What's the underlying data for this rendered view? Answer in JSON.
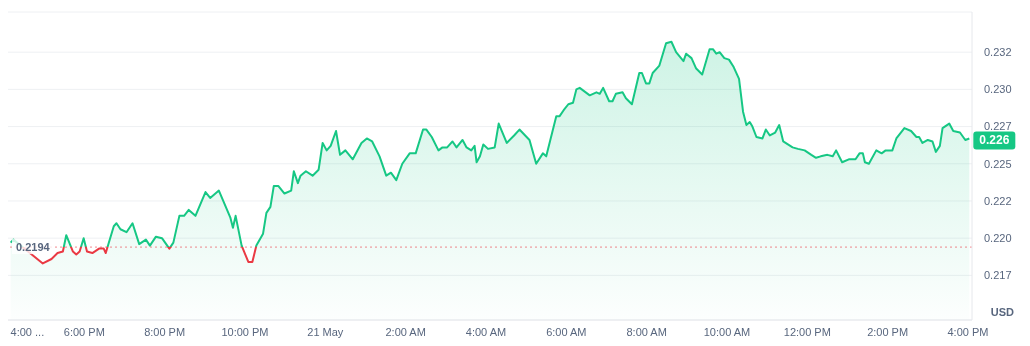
{
  "chart_data": {
    "type": "area",
    "ylabel": "USD",
    "x": [
      "--05-20T16:10",
      "--05-20T16:14",
      "--05-20T16:58",
      "--05-20T17:11",
      "--05-20T17:20",
      "--05-20T17:28",
      "--05-20T17:33",
      "--05-20T17:43",
      "--05-20T17:48",
      "--05-20T17:53",
      "--05-20T17:59",
      "--05-20T18:04",
      "--05-20T18:12",
      "--05-20T18:22",
      "--05-20T18:29",
      "--05-20T18:32",
      "--05-20T18:44",
      "--05-20T18:48",
      "--05-20T18:54",
      "--05-20T19:03",
      "--05-20T19:12",
      "--05-20T19:22",
      "--05-20T19:32",
      "--05-20T19:38",
      "--05-20T19:47",
      "--05-20T19:56",
      "--05-20T20:07",
      "--05-20T20:13",
      "--05-20T20:22",
      "--05-20T20:29",
      "--05-20T20:36",
      "--05-20T20:46",
      "--05-20T21:01",
      "--05-20T21:08",
      "--05-20T21:21",
      "--05-20T21:38",
      "--05-20T21:42",
      "--05-20T21:46",
      "--05-20T21:55",
      "--05-20T22:05",
      "--05-20T22:11",
      "--05-20T22:17",
      "--05-20T22:27",
      "--05-20T22:32",
      "--05-20T22:38",
      "--05-20T22:43",
      "--05-20T22:50",
      "--05-20T22:59",
      "--05-20T23:09",
      "--05-20T23:13",
      "--05-20T23:19",
      "--05-20T23:23",
      "--05-20T23:31",
      "--05-20T23:41",
      "--05-20T23:50",
      "--05-20T23:56",
      "--05-21T00:02",
      "--05-21T00:08",
      "--05-21T00:16",
      "--05-21T00:22",
      "--05-21T00:30",
      "--05-21T00:41",
      "--05-21T00:54",
      "--05-21T01:02",
      "--05-21T01:10",
      "--05-21T01:21",
      "--05-21T01:31",
      "--05-21T01:38",
      "--05-21T01:46",
      "--05-21T01:55",
      "--05-21T02:06",
      "--05-21T02:15",
      "--05-21T02:26",
      "--05-21T02:31",
      "--05-21T02:39",
      "--05-21T02:49",
      "--05-21T02:55",
      "--05-21T03:02",
      "--05-21T03:10",
      "--05-21T03:16",
      "--05-21T03:25",
      "--05-21T03:31",
      "--05-21T03:38",
      "--05-21T03:43",
      "--05-21T03:46",
      "--05-21T03:51",
      "--05-21T03:56",
      "--05-21T04:03",
      "--05-21T04:13",
      "--05-21T04:19",
      "--05-21T04:31",
      "--05-21T04:42",
      "--05-21T04:50",
      "--05-21T05:05",
      "--05-21T05:15",
      "--05-21T05:25",
      "--05-21T05:30",
      "--05-21T05:45",
      "--05-21T05:50",
      "--05-21T05:56",
      "--05-21T06:03",
      "--05-21T06:10",
      "--05-21T06:15",
      "--05-21T06:20",
      "--05-21T06:35",
      "--05-21T06:45",
      "--05-21T06:50",
      "--05-21T06:55",
      "--05-21T07:04",
      "--05-21T07:09",
      "--05-21T07:14",
      "--05-21T07:24",
      "--05-21T07:29",
      "--05-21T07:38",
      "--05-21T07:49",
      "--05-21T07:53",
      "--05-21T07:59",
      "--05-21T08:04",
      "--05-21T08:09",
      "--05-21T08:19",
      "--05-21T08:29",
      "--05-21T08:37",
      "--05-21T08:44",
      "--05-21T08:55",
      "--05-21T08:59",
      "--05-21T09:07",
      "--05-21T09:14",
      "--05-21T09:23",
      "--05-21T09:34",
      "--05-21T09:39",
      "--05-21T09:44",
      "--05-21T09:49",
      "--05-21T09:56",
      "--05-21T10:03",
      "--05-21T10:10",
      "--05-21T10:18",
      "--05-21T10:24",
      "--05-21T10:29",
      "--05-21T10:34",
      "--05-21T10:38",
      "--05-21T10:44",
      "--05-21T10:53",
      "--05-21T10:58",
      "--05-21T11:04",
      "--05-21T11:12",
      "--05-21T11:18",
      "--05-21T11:24",
      "--05-21T11:31",
      "--05-21T11:38",
      "--05-21T11:46",
      "--05-21T11:56",
      "--05-21T12:06",
      "--05-21T12:13",
      "--05-21T12:20",
      "--05-21T12:30",
      "--05-21T12:38",
      "--05-21T12:43",
      "--05-21T12:52",
      "--05-21T13:02",
      "--05-21T13:12",
      "--05-21T13:18",
      "--05-21T13:23",
      "--05-21T13:26",
      "--05-21T13:32",
      "--05-21T13:43",
      "--05-21T13:51",
      "--05-21T13:57",
      "--05-21T14:07",
      "--05-21T14:13",
      "--05-21T14:25",
      "--05-21T14:35",
      "--05-21T14:43",
      "--05-21T14:47",
      "--05-21T14:52",
      "--05-21T15:00",
      "--05-21T15:07",
      "--05-21T15:12",
      "--05-21T15:18",
      "--05-21T15:22",
      "--05-21T15:32",
      "--05-21T15:38",
      "--05-21T15:48",
      "--05-21T15:56",
      "--05-21T16:02"
    ],
    "series": [
      {
        "color": "#16c784",
        "values": [
          0.2197,
          0.2199,
          0.2183,
          0.2186,
          0.219,
          0.2191,
          0.2202,
          0.2191,
          0.2189,
          0.2191,
          0.22,
          0.2191,
          0.219,
          0.2193,
          0.2193,
          0.219,
          0.2208,
          0.221,
          0.2206,
          0.2204,
          0.221,
          0.2196,
          0.2199,
          0.2195,
          0.2201,
          0.22,
          0.2193,
          0.2197,
          0.2215,
          0.2215,
          0.2219,
          0.2215,
          0.2231,
          0.2227,
          0.2232,
          0.2214,
          0.2207,
          0.2215,
          0.2195,
          0.2184,
          0.2184,
          0.2195,
          0.2203,
          0.2217,
          0.2221,
          0.2235,
          0.2235,
          0.223,
          0.2232,
          0.2245,
          0.2237,
          0.2242,
          0.2245,
          0.2242,
          0.2246,
          0.2264,
          0.2259,
          0.2262,
          0.2272,
          0.2256,
          0.2259,
          0.2253,
          0.2264,
          0.2267,
          0.2265,
          0.2255,
          0.2242,
          0.2244,
          0.2239,
          0.225,
          0.2257,
          0.2257,
          0.2273,
          0.2273,
          0.2268,
          0.2259,
          0.2261,
          0.2261,
          0.2265,
          0.2261,
          0.2266,
          0.2261,
          0.2259,
          0.2262,
          0.2251,
          0.2255,
          0.2263,
          0.226,
          0.2261,
          0.2277,
          0.2264,
          0.2269,
          0.2273,
          0.2266,
          0.225,
          0.2257,
          0.2255,
          0.2282,
          0.2282,
          0.2286,
          0.229,
          0.2291,
          0.23,
          0.2301,
          0.2296,
          0.2298,
          0.2297,
          0.2301,
          0.2292,
          0.2292,
          0.2297,
          0.2298,
          0.2294,
          0.229,
          0.2311,
          0.2311,
          0.2304,
          0.2304,
          0.2311,
          0.2316,
          0.2331,
          0.2332,
          0.2325,
          0.2319,
          0.2324,
          0.2321,
          0.2314,
          0.231,
          0.2327,
          0.2327,
          0.2324,
          0.2325,
          0.2321,
          0.232,
          0.2315,
          0.2307,
          0.2285,
          0.2276,
          0.2278,
          0.2275,
          0.2268,
          0.2267,
          0.2273,
          0.2269,
          0.2271,
          0.2276,
          0.2265,
          0.2263,
          0.2261,
          0.226,
          0.2259,
          0.2256,
          0.2254,
          0.2255,
          0.2256,
          0.2255,
          0.2259,
          0.2251,
          0.2253,
          0.2253,
          0.2257,
          0.2257,
          0.2251,
          0.225,
          0.2259,
          0.2257,
          0.2259,
          0.2259,
          0.2267,
          0.2274,
          0.2272,
          0.2268,
          0.2268,
          0.2264,
          0.2266,
          0.2265,
          0.2258,
          0.2262,
          0.2274,
          0.2277,
          0.2272,
          0.2271,
          0.2266,
          0.2267
        ]
      }
    ],
    "xlim": [
      "--05-20T16:06",
      "--05-21T16:06"
    ],
    "xticks": [
      {
        "value": "--05-20T16:35",
        "label": "4:00 ..."
      },
      {
        "value": "--05-20T18:00",
        "label": "6:00 PM"
      },
      {
        "value": "--05-20T20:00",
        "label": "8:00 PM"
      },
      {
        "value": "--05-20T22:00",
        "label": "10:00 PM"
      },
      {
        "value": "--05-21T00:00",
        "label": "21 May"
      },
      {
        "value": "--05-21T02:00",
        "label": "2:00 AM"
      },
      {
        "value": "--05-21T04:00",
        "label": "4:00 AM"
      },
      {
        "value": "--05-21T06:00",
        "label": "6:00 AM"
      },
      {
        "value": "--05-21T08:00",
        "label": "8:00 AM"
      },
      {
        "value": "--05-21T10:00",
        "label": "10:00 AM"
      },
      {
        "value": "--05-21T12:00",
        "label": "12:00 PM"
      },
      {
        "value": "--05-21T14:00",
        "label": "2:00 PM"
      },
      {
        "value": "--05-21T16:00",
        "label": "4:00 PM"
      }
    ],
    "ylim": [
      0.2145,
      0.2352
    ],
    "yticks": [
      {
        "value": 0.2175,
        "label": "0.217"
      },
      {
        "value": 0.22,
        "label": "0.220"
      },
      {
        "value": 0.2225,
        "label": "0.222"
      },
      {
        "value": 0.225,
        "label": "0.225"
      },
      {
        "value": 0.2275,
        "label": "0.227"
      },
      {
        "value": 0.23,
        "label": "0.230"
      },
      {
        "value": 0.2325,
        "label": "0.232"
      }
    ],
    "grid": "y",
    "ref_lines": [
      {
        "axis": "y",
        "value": 0.2194,
        "label": "0.2194",
        "color": "#ea3943",
        "line_style": "dotted"
      }
    ],
    "annotations": [
      {
        "text": "0.226",
        "x": "--05-21T16:02",
        "y": 0.2267
      }
    ]
  }
}
